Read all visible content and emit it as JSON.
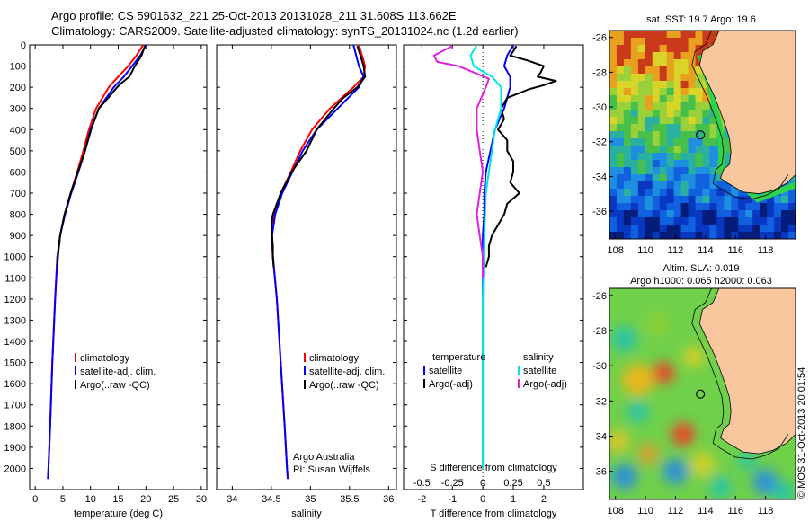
{
  "title_line1": "Argo profile: CS 5901632_221 25-Oct-2013 20131028_211 31.608S 113.662E",
  "title_line2": "Climatology: CARS2009. Satellite-adjusted climatology: synTS_20131024.nc (1.2d earlier)",
  "sst_map_title": "sat. SST: 19.7  Argo: 19.6",
  "sla_map_title_1": "Altim. SLA: 0.019",
  "sla_map_title_2": "Argo h1000: 0.065 h2000: 0.063",
  "vertical_stamp": "©IMOS 31-Oct-2013 20:01:54",
  "colors": {
    "climatology": "#ff0000",
    "satellite": "#0000ff",
    "argo": "#000000",
    "s_sat": "#00e5e5",
    "s_argo": "#e020e0",
    "land": "#f9c79e"
  },
  "chart_data": [
    {
      "type": "line",
      "name": "temperature_profile",
      "xlabel": "temperature (deg C)",
      "xlim": [
        -1,
        31
      ],
      "ylim": [
        2100,
        0
      ],
      "xticks": [
        0,
        5,
        10,
        15,
        20,
        25,
        30
      ],
      "yticks": [
        0,
        100,
        200,
        300,
        400,
        500,
        600,
        700,
        800,
        900,
        1000,
        1100,
        1200,
        1300,
        1400,
        1500,
        1600,
        1700,
        1800,
        1900,
        2000
      ],
      "legend": [
        "climatology",
        "satellite-adj. clim.",
        "Argo(..raw -QC)"
      ],
      "series": [
        {
          "name": "climatology",
          "color": "#ff0000",
          "y": [
            0,
            50,
            100,
            150,
            200,
            300,
            400,
            500,
            600,
            700,
            800,
            900,
            1000,
            1200,
            1500,
            1800,
            2000,
            2050
          ],
          "x": [
            19.5,
            18.3,
            16.8,
            15.0,
            13.3,
            11.0,
            9.7,
            8.7,
            7.6,
            6.4,
            5.3,
            4.5,
            4.0,
            3.6,
            3.1,
            2.7,
            2.4,
            2.3
          ]
        },
        {
          "name": "satellite-adj. clim.",
          "color": "#0000ff",
          "y": [
            0,
            50,
            100,
            150,
            200,
            300,
            400,
            500,
            600,
            700,
            800,
            900,
            1000,
            1200,
            1500,
            1800,
            2000,
            2050
          ],
          "x": [
            20.0,
            19.0,
            17.5,
            16.0,
            14.2,
            11.5,
            10.0,
            9.0,
            7.8,
            6.5,
            5.4,
            4.5,
            4.0,
            3.6,
            3.1,
            2.7,
            2.4,
            2.3
          ]
        },
        {
          "name": "Argo(..raw -QC)",
          "color": "#000000",
          "y": [
            5,
            50,
            100,
            150,
            180,
            200,
            250,
            300,
            400,
            500,
            600,
            700,
            800,
            900,
            1000,
            1050
          ],
          "x": [
            19.8,
            19.2,
            18.0,
            17.0,
            15.6,
            14.8,
            13.2,
            11.5,
            10.1,
            9.0,
            7.7,
            6.4,
            5.3,
            4.5,
            4.1,
            4.0
          ]
        }
      ]
    },
    {
      "type": "line",
      "name": "salinity_profile",
      "xlabel": "salinity",
      "xlim": [
        33.8,
        36.1
      ],
      "ylim": [
        2100,
        0
      ],
      "xticks": [
        34,
        34.5,
        35,
        35.5,
        36
      ],
      "legend": [
        "climatology",
        "satellite-adj. clim.",
        "Argo(..raw -QC)"
      ],
      "annotations": [
        "Argo Australia",
        "PI: Susan Wijffels"
      ],
      "series": [
        {
          "name": "climatology",
          "color": "#ff0000",
          "y": [
            0,
            100,
            150,
            200,
            300,
            400,
            500,
            600,
            700,
            800,
            900,
            1000,
            1200,
            1500,
            1800,
            2000,
            2050
          ],
          "x": [
            35.62,
            35.7,
            35.68,
            35.55,
            35.25,
            35.02,
            34.87,
            34.75,
            34.62,
            34.53,
            34.5,
            34.52,
            34.57,
            34.62,
            34.67,
            34.7,
            34.71
          ]
        },
        {
          "name": "satellite-adj. clim.",
          "color": "#0000ff",
          "y": [
            0,
            100,
            150,
            200,
            300,
            400,
            500,
            600,
            700,
            800,
            900,
            1000,
            1200,
            1500,
            1800,
            2000,
            2050
          ],
          "x": [
            35.55,
            35.62,
            35.68,
            35.62,
            35.35,
            35.08,
            34.9,
            34.77,
            34.64,
            34.55,
            34.51,
            34.52,
            34.57,
            34.62,
            34.67,
            34.7,
            34.71
          ]
        },
        {
          "name": "Argo(..raw -QC)",
          "color": "#000000",
          "y": [
            5,
            50,
            100,
            150,
            200,
            250,
            300,
            400,
            500,
            600,
            700,
            800,
            850,
            900,
            950,
            1000,
            1050
          ],
          "x": [
            35.6,
            35.64,
            35.68,
            35.7,
            35.6,
            35.42,
            35.3,
            35.08,
            34.95,
            34.76,
            34.62,
            34.52,
            34.5,
            34.51,
            34.52,
            34.52,
            34.53
          ]
        }
      ]
    },
    {
      "type": "line",
      "name": "difference_profile",
      "xlabel_bottom": "T difference from climatology",
      "xlabel_top": "S difference from climatology",
      "xlim": [
        -2.6,
        3.3
      ],
      "ylim": [
        2100,
        0
      ],
      "xticks_T": [
        -2,
        -1,
        0,
        1,
        2
      ],
      "xticks_S_labels": [
        "-0.5",
        "-0.25",
        "0",
        "0.25",
        "0.5"
      ],
      "xticks_S_positions": [
        -2,
        -1,
        0,
        1,
        2
      ],
      "legend_T": [
        "temperature",
        "satellite",
        "Argo(-adj)"
      ],
      "legend_S": [
        "salinity",
        "satellite",
        "Argo(-adj)"
      ],
      "series": [
        {
          "name": "T satellite",
          "color": "#0000ff",
          "y": [
            0,
            50,
            100,
            150,
            200,
            300,
            400,
            500,
            600,
            700,
            800,
            900,
            1000,
            1500,
            2000
          ],
          "x": [
            1.0,
            0.8,
            0.7,
            0.9,
            0.9,
            0.7,
            0.4,
            0.25,
            0.1,
            0.05,
            0.05,
            0,
            0,
            0,
            0
          ]
        },
        {
          "name": "T Argo(-adj)",
          "color": "#000000",
          "y": [
            5,
            30,
            50,
            75,
            100,
            130,
            150,
            170,
            190,
            210,
            250,
            300,
            350,
            400,
            450,
            500,
            550,
            600,
            650,
            700,
            750,
            800,
            850,
            900,
            950,
            1000,
            1050
          ],
          "x": [
            1.1,
            1.0,
            0.9,
            1.5,
            2.0,
            1.9,
            1.8,
            2.4,
            2.0,
            1.5,
            0.8,
            0.6,
            0.7,
            0.5,
            0.8,
            0.8,
            1.0,
            1.0,
            0.9,
            1.2,
            0.8,
            0.7,
            0.5,
            0.3,
            0.2,
            0.2,
            0.1
          ]
        },
        {
          "name": "S satellite",
          "color": "#00e5e5",
          "y": [
            0,
            50,
            100,
            150,
            200,
            300,
            400,
            500,
            700,
            900,
            1200,
            1600,
            2000
          ],
          "x": [
            -0.2,
            -0.4,
            -0.3,
            0.3,
            0.6,
            0.6,
            0.4,
            0.3,
            0.1,
            0.05,
            0,
            0,
            0
          ]
        },
        {
          "name": "S Argo(-adj)",
          "color": "#e020e0",
          "y": [
            5,
            50,
            80,
            100,
            130,
            160,
            200,
            300,
            400,
            500,
            600,
            700,
            800,
            900,
            1000,
            1100
          ],
          "x": [
            -1.0,
            -1.6,
            -1.5,
            -0.8,
            -0.3,
            0.2,
            0.1,
            -0.2,
            -0.2,
            -0.1,
            0,
            -0.1,
            -0.2,
            -0.1,
            0,
            0
          ]
        }
      ]
    },
    {
      "type": "heatmap",
      "name": "sst_map",
      "title": "sat. SST: 19.7  Argo: 19.6",
      "xlim": [
        107.6,
        120
      ],
      "ylim": [
        -37.6,
        -25.6
      ],
      "xticks": [
        108,
        110,
        112,
        114,
        116,
        118
      ],
      "yticks": [
        -26,
        -28,
        -30,
        -32,
        -34,
        -36
      ],
      "marker": {
        "lon": 113.66,
        "lat": -31.61
      }
    },
    {
      "type": "heatmap",
      "name": "sla_map",
      "title": "Altim. SLA: 0.019",
      "xlim": [
        107.6,
        120
      ],
      "ylim": [
        -37.6,
        -25.6
      ],
      "xticks": [
        108,
        110,
        112,
        114,
        116,
        118
      ],
      "yticks": [
        -26,
        -28,
        -30,
        -32,
        -34,
        -36
      ],
      "marker": {
        "lon": 113.66,
        "lat": -31.61
      }
    }
  ]
}
